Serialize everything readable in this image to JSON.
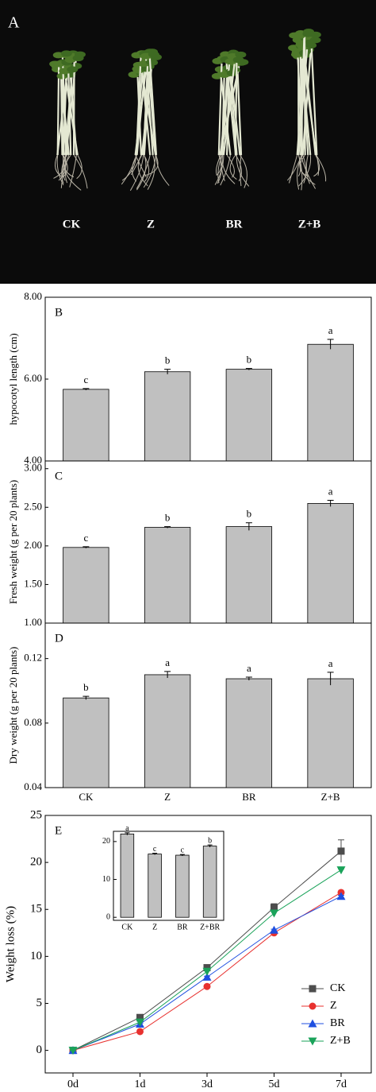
{
  "photo": {
    "panel": "A",
    "labels": [
      "CK",
      "Z",
      "BR",
      "Z+B"
    ]
  },
  "chart_data": [
    {
      "type": "bar",
      "title": "B",
      "y_label": "hypocotyl length (cm)",
      "values": [
        5.75,
        6.18,
        6.24,
        6.85
      ],
      "errors": [
        0.02,
        0.06,
        0.02,
        0.12
      ],
      "letters": [
        "c",
        "b",
        "b",
        "a"
      ],
      "color": "#c0c0c0",
      "ylim": [
        4,
        8
      ],
      "yticks": [
        {
          "value": 4,
          "label": "4.00"
        },
        {
          "value": 6,
          "label": "6.00"
        },
        {
          "value": 8,
          "label": "8.00"
        }
      ]
    },
    {
      "type": "bar",
      "title": "C",
      "y_label": "Fresh weight (g per 20 plants)",
      "values": [
        1.98,
        2.24,
        2.25,
        2.55
      ],
      "errors": [
        0.01,
        0.01,
        0.05,
        0.04
      ],
      "letters": [
        "c",
        "b",
        "b",
        "a"
      ],
      "color": "#c0c0c0",
      "ylim": [
        1,
        3.1
      ],
      "yticks": [
        {
          "value": 1,
          "label": "1.00"
        },
        {
          "value": 1.5,
          "label": "1.50"
        },
        {
          "value": 2,
          "label": "2.00"
        },
        {
          "value": 2.5,
          "label": "2.50"
        },
        {
          "value": 3,
          "label": "3.00"
        }
      ]
    },
    {
      "type": "bar",
      "title": "D",
      "y_label": "Dry weight (g per 20 plants)",
      "categories": [
        "CK",
        "Z",
        "BR",
        "Z+B"
      ],
      "values": [
        0.0956,
        0.11,
        0.1075,
        0.1075
      ],
      "errors": [
        0.001,
        0.002,
        0.001,
        0.004
      ],
      "letters": [
        "b",
        "a",
        "a",
        "a"
      ],
      "color": "#c0c0c0",
      "ylim": [
        0.04,
        0.142
      ],
      "yticks": [
        0.04,
        0.08,
        0.12
      ]
    },
    {
      "type": "line",
      "title": "E",
      "y_label": "Weight loss (%)",
      "categories": [
        "0d",
        "1d",
        "3d",
        "5d",
        "7d"
      ],
      "series": [
        {
          "name": "CK",
          "color": "#4d4d4d",
          "marker": "square",
          "values": [
            0,
            3.5,
            8.8,
            15.2,
            21.2
          ],
          "errors": [
            0,
            0.1,
            0.2,
            0.4,
            1.2
          ]
        },
        {
          "name": "Z",
          "color": "#e8312f",
          "marker": "circle",
          "values": [
            0,
            2.0,
            6.8,
            12.5,
            16.8
          ],
          "errors": [
            0,
            0.1,
            0.1,
            0.1,
            0.1
          ]
        },
        {
          "name": "BR",
          "color": "#1f4fe0",
          "marker": "triangle",
          "values": [
            0,
            2.8,
            7.8,
            12.8,
            16.4
          ],
          "errors": [
            0,
            0.1,
            0.1,
            0.1,
            0.1
          ]
        },
        {
          "name": "Z+B",
          "color": "#1aa35a",
          "marker": "triangle-down",
          "values": [
            0,
            3.0,
            8.4,
            14.6,
            19.2
          ],
          "errors": [
            0,
            0.1,
            0.1,
            0.2,
            0.1
          ]
        }
      ],
      "ylim": [
        -2.4,
        25
      ],
      "yticks": [
        0,
        5,
        10,
        15,
        20,
        25
      ],
      "legend": "lower right"
    },
    {
      "type": "bar",
      "categories": [
        "CK",
        "Z",
        "BR",
        "Z+BR"
      ],
      "values": [
        22.0,
        16.7,
        16.4,
        18.8
      ],
      "errors": [
        0.3,
        0.2,
        0.2,
        0.3
      ],
      "letters": [
        "a",
        "c",
        "c",
        "b"
      ],
      "color": "#c0c0c0",
      "ylim": [
        -0.8,
        22.7
      ],
      "yticks": [
        0,
        10,
        20
      ]
    }
  ]
}
